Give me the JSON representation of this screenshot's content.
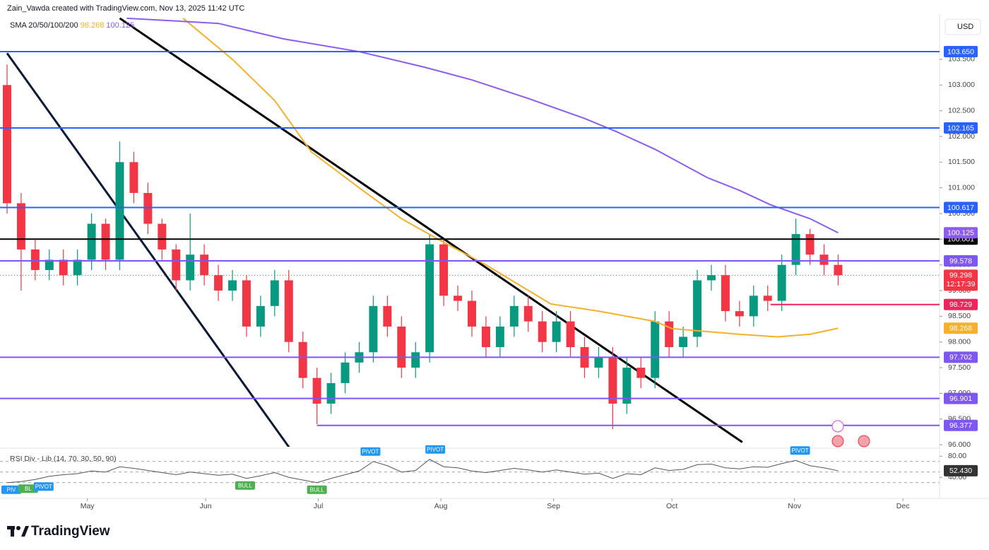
{
  "header": {
    "credit": "Zain_Vawda created with TradingView.com, Nov 13, 2025 11:42 UTC",
    "currency": "USD",
    "indicator_label": "SMA 20/50/100/200",
    "rsi_label": "RSI Div - Lib (14, 70, 30, 50, 90)",
    "brand": "TradingView"
  },
  "chart_data": [
    {
      "type": "candlestick",
      "xlim": [
        -0.5,
        66.2
      ],
      "ylim": [
        95.96,
        104.38
      ],
      "xticks": [
        {
          "value": 5.7,
          "label": "May"
        },
        {
          "value": 14.1,
          "label": "Jun"
        },
        {
          "value": 22.1,
          "label": "Jul"
        },
        {
          "value": 30.8,
          "label": "Aug"
        },
        {
          "value": 38.8,
          "label": "Sep"
        },
        {
          "value": 47.2,
          "label": "Oct"
        },
        {
          "value": 55.9,
          "label": "Nov"
        },
        {
          "value": 63.6,
          "label": "Dec"
        }
      ],
      "yticks": [
        {
          "value": 103.5,
          "label": "103.500"
        },
        {
          "value": 103,
          "label": "103.000"
        },
        {
          "value": 102.5,
          "label": "102.500"
        },
        {
          "value": 102,
          "label": "102.000"
        },
        {
          "value": 101.5,
          "label": "101.500"
        },
        {
          "value": 101,
          "label": "101.000"
        },
        {
          "value": 100.5,
          "label": "100.500"
        },
        {
          "value": 100,
          "label": "100.000"
        },
        {
          "value": 99.5,
          "label": "99.500"
        },
        {
          "value": 99,
          "label": "99.000"
        },
        {
          "value": 98.5,
          "label": "98.500"
        },
        {
          "value": 98,
          "label": "98.000"
        },
        {
          "value": 97.5,
          "label": "97.500"
        },
        {
          "value": 97,
          "label": "97.000"
        },
        {
          "value": 96.5,
          "label": "96.500"
        },
        {
          "value": 96,
          "label": "96.000"
        }
      ],
      "up_color": "#089981",
      "down_color": "#f23645",
      "open": [
        103.0,
        100.7,
        99.8,
        99.4,
        99.6,
        99.3,
        99.6,
        100.3,
        99.6,
        101.5,
        100.9,
        100.3,
        99.8,
        99.2,
        99.7,
        99.3,
        99.0,
        99.2,
        98.3,
        98.7,
        99.2,
        98.0,
        97.3,
        96.8,
        97.2,
        97.6,
        97.8,
        98.7,
        98.3,
        97.5,
        97.8,
        99.9,
        98.9,
        98.8,
        98.3,
        97.9,
        98.3,
        98.7,
        98.4,
        98.0,
        98.4,
        97.9,
        97.5,
        97.7,
        96.8,
        97.5,
        97.3,
        98.4,
        97.9,
        98.1,
        99.2,
        99.3,
        98.6,
        98.5,
        98.9,
        98.8,
        99.5,
        100.1,
        99.7,
        99.5
      ],
      "high": [
        103.4,
        100.9,
        100.0,
        99.8,
        99.8,
        99.8,
        100.5,
        100.4,
        101.9,
        101.7,
        101.1,
        100.4,
        99.9,
        100.5,
        99.9,
        99.5,
        99.4,
        99.3,
        98.9,
        99.4,
        99.4,
        98.2,
        97.5,
        97.4,
        97.8,
        98.0,
        98.9,
        98.9,
        98.5,
        98.0,
        100.1,
        100.0,
        99.1,
        99.0,
        98.5,
        98.5,
        98.9,
        98.9,
        98.6,
        98.6,
        98.6,
        98.1,
        97.9,
        97.9,
        97.7,
        97.7,
        98.6,
        98.6,
        98.3,
        99.4,
        99.5,
        99.5,
        98.8,
        99.1,
        99.1,
        99.7,
        100.4,
        100.2,
        99.9,
        99.7
      ],
      "low": [
        100.5,
        99.0,
        99.2,
        99.2,
        99.1,
        99.1,
        99.4,
        99.4,
        99.4,
        100.7,
        100.1,
        99.6,
        99.0,
        99.0,
        99.1,
        98.8,
        98.8,
        98.1,
        98.1,
        98.5,
        97.8,
        97.1,
        96.4,
        96.6,
        97.0,
        97.4,
        97.6,
        98.1,
        97.3,
        97.3,
        97.6,
        98.7,
        98.6,
        98.1,
        97.7,
        97.7,
        98.1,
        98.2,
        97.8,
        97.8,
        97.7,
        97.3,
        97.3,
        96.3,
        96.6,
        97.1,
        97.1,
        97.7,
        97.7,
        97.9,
        99.0,
        98.4,
        98.3,
        98.3,
        98.6,
        98.6,
        99.3,
        99.5,
        99.3,
        99.1
      ],
      "close": [
        100.7,
        99.8,
        99.4,
        99.6,
        99.3,
        99.6,
        100.3,
        99.6,
        101.5,
        100.9,
        100.3,
        99.8,
        99.2,
        99.7,
        99.3,
        99.0,
        99.2,
        98.3,
        98.7,
        99.2,
        98.0,
        97.3,
        96.8,
        97.2,
        97.6,
        97.8,
        98.7,
        98.3,
        97.5,
        97.8,
        99.9,
        98.9,
        98.8,
        98.3,
        97.9,
        98.3,
        98.7,
        98.4,
        98.0,
        98.4,
        97.9,
        97.5,
        97.7,
        96.8,
        97.5,
        97.3,
        98.4,
        97.9,
        98.1,
        99.2,
        99.3,
        98.6,
        98.5,
        98.9,
        98.8,
        99.5,
        100.1,
        99.7,
        99.5,
        99.3
      ],
      "series": [
        {
          "color": "#f5b02c",
          "x": [
            12.5,
            16,
            19,
            21.6,
            25,
            28,
            30.6,
            34,
            38.6,
            42,
            46,
            47.2,
            52,
            54.7,
            57,
            59
          ],
          "values": [
            104.3,
            103.5,
            102.7,
            101.7,
            101.0,
            100.4,
            100.0,
            99.5,
            98.74,
            98.6,
            98.4,
            98.26,
            98.15,
            98.1,
            98.15,
            98.268
          ],
          "last": {
            "value": 98.268,
            "label": "98.268"
          }
        },
        {
          "color": "#8c5cf0",
          "x": [
            8.5,
            15,
            19.6,
            25,
            29.6,
            33,
            37.1,
            41,
            43.2,
            46,
            49.7,
            52,
            54.2,
            57,
            59
          ],
          "values": [
            104.3,
            104.2,
            103.9,
            103.65,
            103.35,
            103.1,
            102.73,
            102.35,
            102.1,
            101.75,
            101.2,
            100.95,
            100.67,
            100.4,
            100.125
          ],
          "last": {
            "value": 100.125,
            "label": "100.125"
          }
        }
      ],
      "trendlines": [
        {
          "color": "#0c1a3a",
          "x": [
            0,
            20.1
          ],
          "y": [
            103.62,
            95.92
          ]
        },
        {
          "color": "#000000",
          "x": [
            8.0,
            52.2
          ],
          "y": [
            104.3,
            96.05
          ]
        }
      ],
      "levels": [
        {
          "value": 103.65,
          "label": "103.650",
          "color": "#2962ff"
        },
        {
          "value": 102.165,
          "label": "102.165",
          "color": "#2962ff"
        },
        {
          "value": 100.617,
          "label": "100.617",
          "color": "#2962ff"
        },
        {
          "value": 100.001,
          "label": "100.001",
          "color": "#000000"
        },
        {
          "value": 99.578,
          "label": "99.578",
          "color": "#7e57f2"
        },
        {
          "value": 98.729,
          "label": "98.729",
          "color": "#f0245c",
          "from": 54.2
        },
        {
          "value": 97.702,
          "label": "97.702",
          "color": "#7e57f2"
        },
        {
          "value": 96.901,
          "label": "96.901",
          "color": "#7e57f2"
        },
        {
          "value": 96.377,
          "label": "96.377",
          "color": "#7e57f2",
          "from": 22.0
        }
      ],
      "current": {
        "value": 99.298,
        "label": "99.298",
        "countdown": "12:17:39",
        "color": "#f23645"
      }
    },
    {
      "type": "line",
      "xlim": [
        -0.5,
        66.2
      ],
      "ylim": [
        3,
        91
      ],
      "color": "#555555",
      "yticks": [
        {
          "value": 80,
          "label": "80.00"
        },
        {
          "value": 40,
          "label": "40.00"
        }
      ],
      "levels": [
        70,
        50,
        30
      ],
      "values": [
        30,
        32,
        36,
        42,
        45,
        47,
        52,
        50,
        60,
        57,
        53,
        49,
        45,
        50,
        47,
        44,
        46,
        38,
        43,
        49,
        40,
        35,
        30,
        38,
        45,
        52,
        70,
        62,
        50,
        53,
        74,
        60,
        58,
        52,
        49,
        53,
        57,
        54,
        50,
        54,
        50,
        46,
        48,
        38,
        47,
        45,
        58,
        53,
        55,
        64,
        65,
        58,
        56,
        60,
        59,
        66,
        72,
        62,
        58,
        52.43
      ],
      "current": {
        "value": 52.43,
        "label": "52.430"
      },
      "annotations": [
        {
          "label": "PIV",
          "x": 0.3,
          "y": 30,
          "position": "below",
          "color": "#2196f3"
        },
        {
          "label": "BL",
          "x": 1.5,
          "y": 32,
          "position": "below",
          "color": "#4caf50"
        },
        {
          "label": "PIVOT",
          "x": 2.6,
          "y": 36,
          "position": "below",
          "color": "#2196f3"
        },
        {
          "label": "PIVOT",
          "x": 25.8,
          "y": 70,
          "position": "above",
          "color": "#2196f3"
        },
        {
          "label": "BULL",
          "x": 16.9,
          "y": 38,
          "position": "below",
          "color": "#4caf50"
        },
        {
          "label": "PIVOT",
          "x": 30.4,
          "y": 74,
          "position": "above",
          "color": "#2196f3"
        },
        {
          "label": "BULL",
          "x": 22.0,
          "y": 30,
          "position": "below",
          "color": "#4caf50"
        },
        {
          "label": "PIVOT",
          "x": 56.3,
          "y": 72,
          "position": "above",
          "color": "#2196f3"
        }
      ]
    }
  ]
}
